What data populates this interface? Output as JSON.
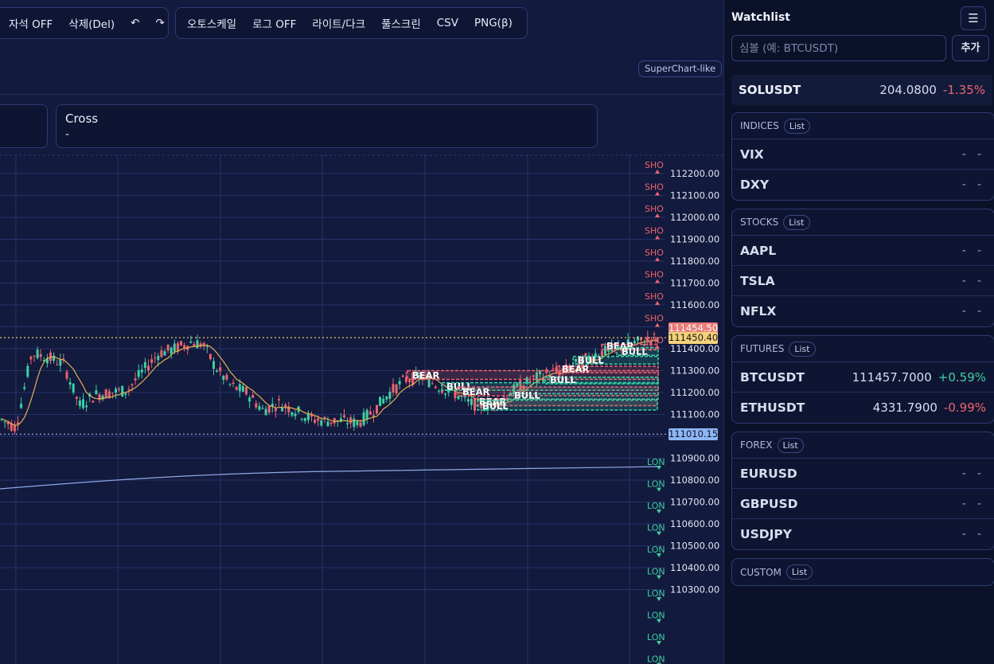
{
  "toolbar": {
    "group1": [
      "자석 OFF",
      "삭제(Del)",
      "↶",
      "↷"
    ],
    "group2": [
      "오토스케일",
      "로그 OFF",
      "라이트/다크",
      "풀스크린",
      "CSV",
      "PNG(β)"
    ]
  },
  "badge": "SuperChart-like",
  "crosshair": {
    "title": "Cross",
    "value": "-"
  },
  "price_axis": {
    "labels": [
      "112200.00",
      "112100.00",
      "112000.00",
      "111900.00",
      "111800.00",
      "111700.00",
      "111600.00",
      "111400.00",
      "111300.00",
      "111200.00",
      "111100.00",
      "110900.00",
      "110800.00",
      "110700.00",
      "110600.00",
      "110500.00",
      "110400.00",
      "110300.00"
    ],
    "tags": {
      "high": "111454.50",
      "last": "111450.40",
      "low": "111010.15"
    }
  },
  "signals": {
    "short": "SHO",
    "long": "LON"
  },
  "zones": {
    "bull": "BULL",
    "bear": "BEAR"
  },
  "watchlist": {
    "title": "Watchlist",
    "menu_icon": "☰",
    "input_placeholder": "심볼 (예: BTCUSDT)",
    "add_label": "추가",
    "pinned": {
      "symbol": "SOLUSDT",
      "price": "204.0800",
      "change": "-1.35%"
    },
    "list_label": "List",
    "groups": [
      {
        "name": "INDICES",
        "rows": [
          {
            "symbol": "VIX",
            "price": "-",
            "change": "-"
          },
          {
            "symbol": "DXY",
            "price": "-",
            "change": "-"
          }
        ]
      },
      {
        "name": "STOCKS",
        "rows": [
          {
            "symbol": "AAPL",
            "price": "-",
            "change": "-"
          },
          {
            "symbol": "TSLA",
            "price": "-",
            "change": "-"
          },
          {
            "symbol": "NFLX",
            "price": "-",
            "change": "-"
          }
        ]
      },
      {
        "name": "FUTURES",
        "rows": [
          {
            "symbol": "BTCUSDT",
            "price": "111457.7000",
            "change": "+0.59%"
          },
          {
            "symbol": "ETHUSDT",
            "price": "4331.7900",
            "change": "-0.99%"
          }
        ]
      },
      {
        "name": "FOREX",
        "rows": [
          {
            "symbol": "EURUSD",
            "price": "-",
            "change": "-"
          },
          {
            "symbol": "GBPUSD",
            "price": "-",
            "change": "-"
          },
          {
            "symbol": "USDJPY",
            "price": "-",
            "change": "-"
          }
        ]
      },
      {
        "name": "CUSTOM",
        "rows": []
      }
    ]
  },
  "colors": {
    "up": "#3ad1a4",
    "down": "#f0626f",
    "ma": "#e0b050",
    "vwap": "#8fa8e6",
    "high_tag": "#f27a7a",
    "last_tag": "#f4d27a",
    "low_tag": "#8fb6f5"
  }
}
